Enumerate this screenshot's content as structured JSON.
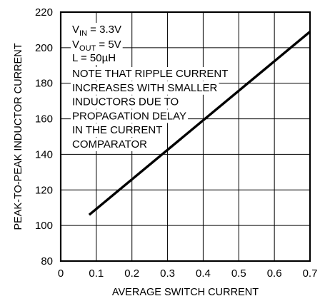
{
  "chart_data": {
    "type": "line",
    "title": "",
    "xlabel": "AVERAGE SWITCH CURRENT",
    "ylabel": "PEAK-TO-PEAK INDUCTOR CURRENT",
    "xlim": [
      0,
      0.7
    ],
    "ylim": [
      80,
      220
    ],
    "x_ticks": [
      0,
      0.1,
      0.2,
      0.3,
      0.4,
      0.5,
      0.6,
      0.7
    ],
    "y_ticks": [
      80,
      100,
      120,
      140,
      160,
      180,
      200,
      220
    ],
    "x_tick_labels": [
      "0",
      "0.1",
      "0.2",
      "0.3",
      "0.4",
      "0.5",
      "0.6",
      "0.7"
    ],
    "y_tick_labels": [
      "80",
      "100",
      "120",
      "140",
      "160",
      "180",
      "200",
      "220"
    ],
    "grid": true,
    "series": [
      {
        "x": [
          0.08,
          0.7
        ],
        "y": [
          106,
          209
        ],
        "color": "#000000"
      }
    ],
    "annotations": {
      "vin": {
        "base": "V",
        "sub": "IN",
        "rest": " = 3.3V"
      },
      "vout": {
        "base": "V",
        "sub": "OUT",
        "rest": " = 5V"
      },
      "inductance": "L = 50µH",
      "note_lines": [
        "NOTE THAT RIPPLE CURRENT",
        "INCREASES WITH SMALLER",
        "INDUCTORS DUE TO",
        "PROPAGATION DELAY",
        "IN THE CURRENT",
        "COMPARATOR"
      ]
    }
  }
}
